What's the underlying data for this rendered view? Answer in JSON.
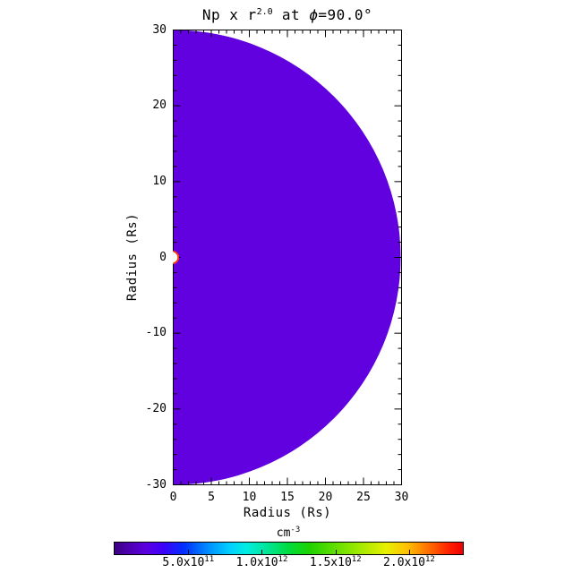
{
  "figure": {
    "background": "#FFFFFF",
    "title_segments": [
      {
        "text": "Np x r"
      },
      {
        "text": "2.0",
        "sup": true
      },
      {
        "text": " at "
      },
      {
        "text": "ϕ",
        "italic": true
      },
      {
        "text": "=90.0"
      },
      {
        "text": "°"
      }
    ]
  },
  "chart_data": {
    "type": "heatmap",
    "title": "Np x r^2.0 at phi=90.0 deg",
    "projection": "polar half-disk (meridional cut), flat side on left axis",
    "xlabel": "Radius (Rs)",
    "ylabel": "Radius (Rs)",
    "xlim": [
      0,
      30
    ],
    "ylim": [
      -30,
      30
    ],
    "x_major_ticks": [
      0,
      5,
      10,
      15,
      20,
      25,
      30
    ],
    "x_minor_step": 1,
    "y_major_ticks": [
      -30,
      -20,
      -10,
      0,
      10,
      20,
      30
    ],
    "y_minor_step": 2,
    "grid": false,
    "field": {
      "description": "Np x r^2.0 is nearly uniform (violet) across the half-disk from about 1 Rs out to 30 Rs",
      "uniform_value_cm3": 250000000000.0,
      "outer_radius_rs": 30,
      "inner_hole_radius_rs": 0.8,
      "fill_color": "#6101DF",
      "inner_rim_color": "#FF3800",
      "inner_fill": "#FFFFFF"
    },
    "colorbar": {
      "units_base": "cm",
      "units_exp": "-3",
      "min": 0,
      "max": 2365000000000.0,
      "ticks": [
        {
          "value": 500000000000.0,
          "base": "5.0x10",
          "exp": "11"
        },
        {
          "value": 1000000000000.0,
          "base": "1.0x10",
          "exp": "12"
        },
        {
          "value": 1500000000000.0,
          "base": "1.5x10",
          "exp": "12"
        },
        {
          "value": 2000000000000.0,
          "base": "2.0x10",
          "exp": "12"
        }
      ],
      "gradient_stops": [
        {
          "pos": 0.0,
          "color": "#3C0080"
        },
        {
          "pos": 0.04,
          "color": "#4C00B0"
        },
        {
          "pos": 0.09,
          "color": "#5B00E0"
        },
        {
          "pos": 0.14,
          "color": "#3D00FA"
        },
        {
          "pos": 0.2,
          "color": "#0030FF"
        },
        {
          "pos": 0.27,
          "color": "#0090FF"
        },
        {
          "pos": 0.33,
          "color": "#00CFFF"
        },
        {
          "pos": 0.38,
          "color": "#00EDE0"
        },
        {
          "pos": 0.44,
          "color": "#00E596"
        },
        {
          "pos": 0.5,
          "color": "#00DC3C"
        },
        {
          "pos": 0.56,
          "color": "#1ED200"
        },
        {
          "pos": 0.63,
          "color": "#5FDE00"
        },
        {
          "pos": 0.7,
          "color": "#9EE900"
        },
        {
          "pos": 0.78,
          "color": "#E8F000"
        },
        {
          "pos": 0.84,
          "color": "#FFC000"
        },
        {
          "pos": 0.9,
          "color": "#FF7000"
        },
        {
          "pos": 0.96,
          "color": "#FF2000"
        },
        {
          "pos": 1.0,
          "color": "#EE0000"
        }
      ]
    }
  }
}
